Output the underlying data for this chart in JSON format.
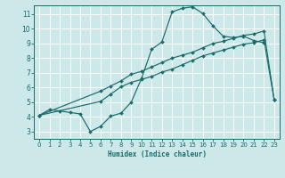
{
  "xlabel": "Humidex (Indice chaleur)",
  "bg_color": "#cce8e8",
  "grid_color": "#ffffff",
  "line_color": "#1a6b6b",
  "xlim": [
    -0.5,
    23.5
  ],
  "ylim": [
    2.5,
    11.6
  ],
  "xticks": [
    0,
    1,
    2,
    3,
    4,
    5,
    6,
    7,
    8,
    9,
    10,
    11,
    12,
    13,
    14,
    15,
    16,
    17,
    18,
    19,
    20,
    21,
    22,
    23
  ],
  "yticks": [
    3,
    4,
    5,
    6,
    7,
    8,
    9,
    10,
    11
  ],
  "line1_x": [
    0,
    1,
    2,
    3,
    4,
    5,
    6,
    7,
    8,
    9,
    10,
    11,
    12,
    13,
    14,
    15,
    16,
    17,
    18,
    19,
    20,
    21,
    22
  ],
  "line1_y": [
    4.1,
    4.5,
    4.4,
    4.3,
    4.2,
    3.0,
    3.35,
    4.05,
    4.25,
    5.0,
    6.6,
    8.6,
    9.1,
    11.15,
    11.4,
    11.5,
    11.05,
    10.2,
    9.5,
    9.4,
    9.5,
    9.2,
    9.05
  ],
  "line2_x": [
    0,
    6,
    7,
    8,
    9,
    10,
    11,
    12,
    13,
    14,
    15,
    16,
    17,
    18,
    19,
    20,
    21,
    22,
    23
  ],
  "line2_y": [
    4.1,
    5.05,
    5.55,
    6.05,
    6.35,
    6.55,
    6.75,
    7.05,
    7.25,
    7.55,
    7.85,
    8.15,
    8.35,
    8.55,
    8.75,
    8.95,
    9.05,
    9.25,
    5.15
  ],
  "line3_x": [
    0,
    6,
    7,
    8,
    9,
    10,
    11,
    12,
    13,
    14,
    15,
    16,
    17,
    18,
    19,
    20,
    21,
    22,
    23
  ],
  "line3_y": [
    4.1,
    5.75,
    6.1,
    6.45,
    6.9,
    7.1,
    7.4,
    7.7,
    8.0,
    8.2,
    8.4,
    8.7,
    9.0,
    9.15,
    9.35,
    9.55,
    9.65,
    9.85,
    5.15
  ]
}
